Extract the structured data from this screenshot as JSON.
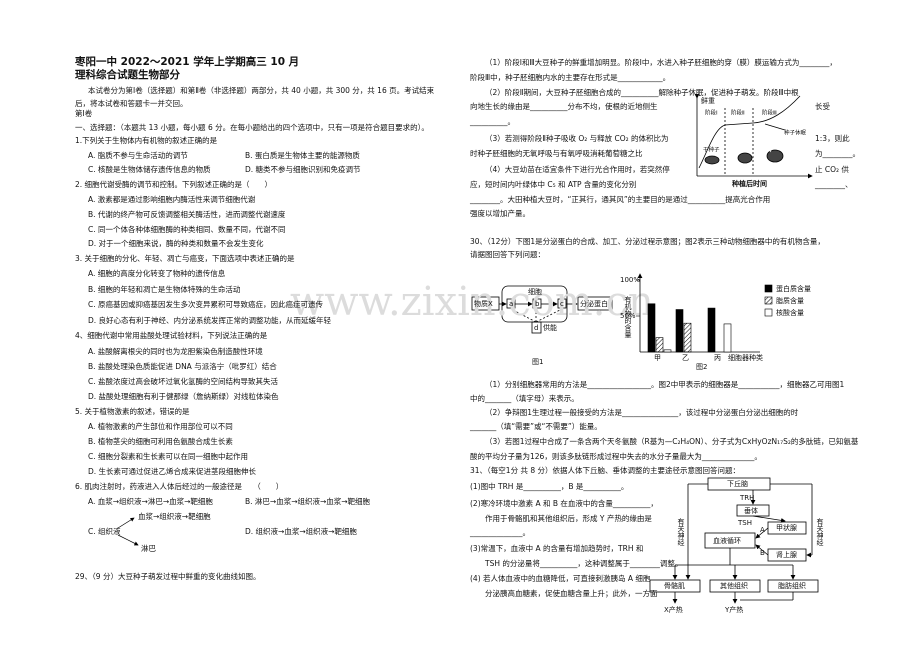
{
  "header": {
    "title": "枣阳一中 2022～2021 学年上学期高三 10 月",
    "subtitle": "理科综合试题生物部分"
  },
  "intro": "本试卷分为第Ⅰ卷（选择题）和第Ⅱ卷（非选择题）两部分，共 40 小题，共 300 分，共 16 页。考试结束后，将本试卷和答题卡一并交回。",
  "part_one": "第Ⅰ卷",
  "instructions": "一、选择题：（本题共 13 小题，每小题 6 分。在每小题给出的四个选项中，只有一项是符合题目要求的）。",
  "questions": [
    {
      "stem": "1.下列关于生物体内有机物的叙述正确的是",
      "options": [
        "A. 脂质不参与生命活动的调节",
        "B. 蛋白质是生物体主要的能源物质",
        "C. 核酸是生物体储存遗传信息的物质",
        "D. 糖类不参与细胞识别和免疫调节"
      ]
    },
    {
      "stem": "2. 细胞代谢受酶的调节和控制。下列叙述正确的是（　　）",
      "options": [
        "A. 激素都是通过影响细胞内酶活性来调节细胞代谢",
        "B. 代谢的终产物可反馈调整相关酶活性，进而调整代谢速度",
        "C. 同一个体各种体细胞酶的种类相同、数量不同，代谢不同",
        "D. 对于一个细胞来说，酶的种类和数量不会发生变化"
      ]
    },
    {
      "stem": "3. 关于细胞的分化、年轻、凋亡与癌变，下面选项中表述正确的是",
      "options": [
        "A. 细胞的高度分化转变了物种的遗传信息",
        "B. 细胞的年轻和凋亡是生物体特殊的生命活动",
        "C. 原癌基因或抑癌基因发生多次变异累积可导致癌症，因此癌症可遗传",
        "D. 良好心态有利于神经、内分泌系统发挥正常的调整功能，从而延缓年轻"
      ]
    },
    {
      "stem": "4、细胞代谢中常用盐酸处理试验材料，下列说法正确的是",
      "options": [
        "A. 盐酸解离根尖的同时也为龙胆紫染色制造酸性环境",
        "B. 盐酸处理染色质能促进 DNA 与派洛宁（吡罗红）结合",
        "C. 盐酸浓度过高会破坏过氧化氢酶的空间结构导致其失活",
        "D. 盐酸处理细胞有利于健那绿（詹纳斯绿）对线粒体染色"
      ]
    },
    {
      "stem": "5. 关于植物激素的叙述，错误的是",
      "options": [
        "A. 植物激素的产生部位和作用部位可以不同",
        "B. 植物茎尖的细胞可利用色氨酸合成生长素",
        "C. 细胞分裂素和生长素可以在同一细胞中起作用",
        "D. 生长素可通过促进乙烯合成来促进茎段细胞伸长"
      ]
    },
    {
      "stem": "6. 肌肉注射时，药液进入人体后经过的一般途径是　　（　　）",
      "options": [
        "A. 血浆→组织液→淋巴→血浆→靶细胞",
        "B. 淋巴→血浆→组织液→血浆→靶细胞",
        {
          "label": "C. 组织液",
          "upper": "血浆→组织液→靶细胞",
          "lower": "淋巴"
        },
        "D. 组织液→血浆→组织液→靶细胞"
      ]
    }
  ],
  "q29": {
    "stem": "29、（9 分）大豆种子萌发过程中鲜重的变化曲线如图。",
    "lines": [
      "（1）阶段Ⅰ和Ⅲ大豆种子的鲜重增加明显。阶段Ⅰ中，水进入种子胚细胞的穿（膜）膜运输方式为________，",
      "阶段Ⅲ中，种子胚细胞内水的主要存在形式是____________。",
      "（2）阶段Ⅱ期间，大豆种子胚细胞合成的__________解除种子休眠，促进种子萌发。阶段Ⅲ中根",
      "向地生长的缘由是__________分布不均，使根的近地侧生",
      "长受",
      "__________。",
      "（3）若测得阶段Ⅱ种子吸收 O₂ 与释放 CO₂ 的体积比为",
      "1:3，则此",
      "时种子胚细胞的无氧呼吸与有氧呼吸消耗葡萄糖之比",
      "为________。",
      "（4）大豆幼苗在适宜条件下进行光合作用时，若突然停",
      "止 CO₂ 供",
      "应，短时间内叶绿体中 C₅ 和 ATP 含量的变化分别",
      "________、",
      "________。大田种植大豆时，“正其行，通其风”的主要目的是通过__________提高光合作用",
      "强度以增加产量。"
    ],
    "graph": {
      "y_label": "鲜重",
      "stages": [
        "阶段Ⅰ",
        "阶段Ⅱ",
        "阶段Ⅲ"
      ],
      "dormant": "种子休眠",
      "dry_seed": "干种子",
      "x_label": "种植后时间"
    }
  },
  "q30": {
    "lines": [
      "30、（12分）下图1是分泌蛋白的合成、加工、分泌过程示意图；图2表示三种动物细胞器中的有机物含量，",
      "请据图回答下列问题："
    ],
    "fig1": {
      "input": "物质X",
      "a": "a",
      "b": "b",
      "c": "c",
      "cell": "细胞",
      "d": "d",
      "energy": "供能",
      "output": "分泌蛋白",
      "title": "图1"
    },
    "fig2": {
      "title": "图2",
      "y_label": "有机物的含量",
      "ylim": [
        0,
        100
      ],
      "yticks": [
        {
          "value": 50,
          "label": "50%"
        },
        {
          "value": 100,
          "label": "100%"
        }
      ],
      "categories": [
        "甲",
        "乙",
        "丙"
      ],
      "x_label": "细胞器种类",
      "series": [
        {
          "name": "蛋白质含量",
          "values": [
            67,
            59,
            61
          ]
        },
        {
          "name": "脂质含量",
          "values": [
            20,
            40,
            0
          ]
        },
        {
          "name": "核酸含量",
          "values": [
            3,
            0,
            39
          ]
        }
      ]
    },
    "answers": [
      "（1）分别细胞器常用的方法是_________________。图2中甲表示的细胞器是___________，细胞器乙可用图1",
      "中的_______（填字母）来表示。",
      "（2）争辩图1生理过程一般接受的方法是_______________，该过程中分泌蛋白分泌出细胞的时",
      "_______（填“需要”或“不需要”）能量。",
      "（3）若图1过程中合成了一条含两个天冬氨酸（R基为—C₂H₄ON）、分子式为CxHyOzN₁₇S₂的多肽链，已知氨基",
      "酸的平均分子量为126，则该多肽链形成过程中失去的水分子量最大为______________。"
    ]
  },
  "q31": {
    "lines": [
      "31、（每空1分 共 8 分）依据人体下丘脑、垂体调整的主要途径示意图回答问题：",
      "(1)图中 TRH 是__________，B 是__________。",
      "(2)寒冷环境中激素 A 和 B 在血液中的含量__________，",
      "作用于骨骼肌和其他组织后，形成 Y 产热的缘由是",
      "______________。",
      "(3)常温下，血液中 A 的含量有增加趋势时，TRH 和",
      "TSH 的分泌量将__________，这种调整属于________调整。",
      "(4) 若人体血液中的血糖降低，可直接刺激胰岛 A 细胞",
      "分泌胰高血糖素，促使血糖含量上升；此外，一方面"
    ],
    "diagram": {
      "hypothalamus": "下丘脑",
      "trh": "TRH",
      "pituitary": "垂体",
      "tsh": "TSH",
      "thyroid": "甲状腺",
      "a": "A",
      "blood": "血液循环",
      "b": "B",
      "adrenal": "肾上腺",
      "nerve_left": "有关神经",
      "nerve_right": "有关神经",
      "muscle": "骨骼肌",
      "other": "其他组织",
      "fat": "脂肪组织",
      "x_heat": "X产热",
      "y_heat": "Y产热"
    }
  },
  "watermark": "www.zixin.com.cn"
}
